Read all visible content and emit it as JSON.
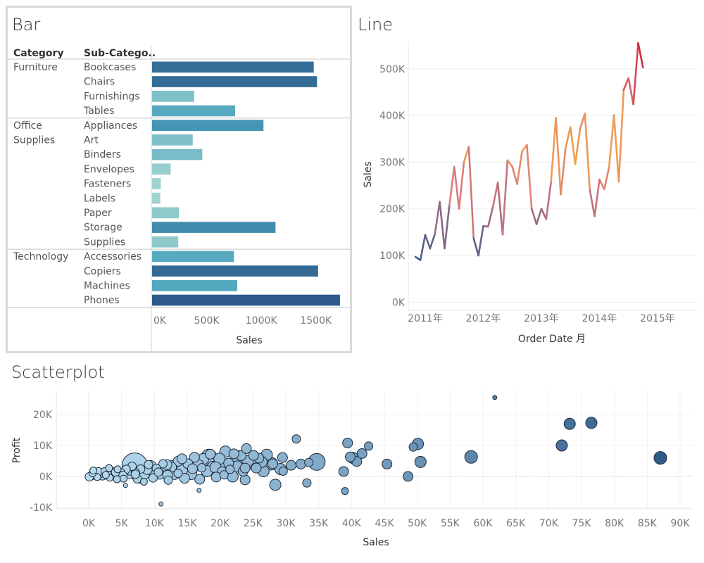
{
  "chart_data": [
    {
      "type": "bar",
      "title": "Bar",
      "orientation": "horizontal",
      "col_headers": [
        "Category",
        "Sub-Catego.."
      ],
      "groups": [
        {
          "label": [
            "Furniture"
          ],
          "items": [
            {
              "name": "Bookcases",
              "value": 1480000
            },
            {
              "name": "Chairs",
              "value": 1510000
            },
            {
              "name": "Furnishings",
              "value": 385000
            },
            {
              "name": "Tables",
              "value": 760000
            }
          ]
        },
        {
          "label": [
            "Office",
            "Supplies"
          ],
          "items": [
            {
              "name": "Appliances",
              "value": 1020000
            },
            {
              "name": "Art",
              "value": 372000
            },
            {
              "name": "Binders",
              "value": 460000
            },
            {
              "name": "Envelopes",
              "value": 170000
            },
            {
              "name": "Fasteners",
              "value": 80000
            },
            {
              "name": "Labels",
              "value": 75000
            },
            {
              "name": "Paper",
              "value": 245000
            },
            {
              "name": "Storage",
              "value": 1130000
            },
            {
              "name": "Supplies",
              "value": 240000
            }
          ]
        },
        {
          "label": [
            "Technology"
          ],
          "items": [
            {
              "name": "Accessories",
              "value": 750000
            },
            {
              "name": "Copiers",
              "value": 1520000
            },
            {
              "name": "Machines",
              "value": 780000
            },
            {
              "name": "Phones",
              "value": 1720000
            }
          ]
        }
      ],
      "xlabel": "Sales",
      "xticks": [
        "0K",
        "500K",
        "1000K",
        "1500K"
      ],
      "xtick_values": [
        0,
        500000,
        1000000,
        1500000
      ],
      "xlim": [
        0,
        1740000
      ],
      "color_low": "#a9d8d2",
      "color_high": "#2d5a8a"
    },
    {
      "type": "line",
      "title": "Line",
      "xlabel": "Order Date 月",
      "ylabel": "Sales",
      "xticks": [
        "2011年",
        "2012年",
        "2013年",
        "2014年",
        "2015年"
      ],
      "xtick_dates": [
        "2011-01",
        "2012-01",
        "2013-01",
        "2014-01",
        "2015-01"
      ],
      "yticks": [
        "0K",
        "100K",
        "200K",
        "300K",
        "400K",
        "500K"
      ],
      "ytick_values": [
        0,
        100000,
        200000,
        300000,
        400000,
        500000
      ],
      "ylim": [
        -10000,
        560000
      ],
      "x_start": "2010-11",
      "values": [
        97000,
        90000,
        144000,
        115000,
        146000,
        215000,
        115000,
        208000,
        290000,
        200000,
        300000,
        333000,
        137000,
        100000,
        163000,
        162000,
        205000,
        256000,
        145000,
        304000,
        290000,
        253000,
        323000,
        337000,
        200000,
        167000,
        200000,
        178000,
        258000,
        395000,
        231000,
        330000,
        375000,
        296000,
        372000,
        404000,
        241000,
        184000,
        263000,
        242000,
        290000,
        401000,
        258000,
        455000,
        480000,
        424000,
        555000,
        503000
      ],
      "color_low": "#3a5a8c",
      "color_mid": "#e07a7a",
      "color_orange": "#f0a050",
      "color_high": "#c41e3a"
    },
    {
      "type": "scatter",
      "title": "Scatterplot",
      "xlabel": "Sales",
      "ylabel": "Profit",
      "xticks": [
        "0K",
        "5K",
        "10K",
        "15K",
        "20K",
        "25K",
        "30K",
        "35K",
        "40K",
        "45K",
        "50K",
        "55K",
        "60K",
        "65K",
        "70K",
        "75K",
        "80K",
        "85K",
        "90K"
      ],
      "xtick_values": [
        0,
        5000,
        10000,
        15000,
        20000,
        25000,
        30000,
        35000,
        40000,
        45000,
        50000,
        55000,
        60000,
        65000,
        70000,
        75000,
        80000,
        85000,
        90000
      ],
      "yticks": [
        "-10K",
        "0K",
        "10K",
        "20K"
      ],
      "ytick_values": [
        -10000,
        0,
        10000,
        20000
      ],
      "xlim": [
        -3000,
        92000
      ],
      "ylim": [
        -12000,
        28000
      ],
      "points": [
        [
          61800,
          25500,
          3
        ],
        [
          73200,
          17000,
          8
        ],
        [
          76500,
          17300,
          8
        ],
        [
          72000,
          10000,
          8
        ],
        [
          87000,
          6000,
          9
        ],
        [
          58200,
          6300,
          9
        ],
        [
          50100,
          10500,
          8
        ],
        [
          50500,
          4700,
          8
        ],
        [
          48600,
          0,
          7
        ],
        [
          49400,
          9500,
          6
        ],
        [
          45400,
          4000,
          7
        ],
        [
          42600,
          9800,
          6
        ],
        [
          41600,
          7400,
          7
        ],
        [
          40800,
          4800,
          7
        ],
        [
          40200,
          6000,
          8
        ],
        [
          39400,
          10800,
          7
        ],
        [
          39000,
          -4700,
          5
        ],
        [
          38800,
          1600,
          7
        ],
        [
          34700,
          4700,
          12
        ],
        [
          33200,
          -2100,
          6
        ],
        [
          32300,
          4000,
          7
        ],
        [
          31600,
          12100,
          6
        ],
        [
          29500,
          6100,
          7
        ],
        [
          29200,
          2400,
          8
        ],
        [
          28400,
          -2700,
          8
        ],
        [
          28000,
          4100,
          7
        ],
        [
          27100,
          7000,
          8
        ],
        [
          26600,
          1700,
          8
        ],
        [
          25900,
          5900,
          7
        ],
        [
          25400,
          3800,
          9
        ],
        [
          25100,
          6800,
          7
        ],
        [
          24200,
          4900,
          8
        ],
        [
          23800,
          -1100,
          7
        ],
        [
          23500,
          1700,
          7
        ],
        [
          23200,
          6700,
          7
        ],
        [
          22600,
          3200,
          8
        ],
        [
          22100,
          7300,
          7
        ],
        [
          21900,
          0,
          8
        ],
        [
          21300,
          4300,
          7
        ],
        [
          20800,
          8000,
          8
        ],
        [
          20300,
          1500,
          7
        ],
        [
          19900,
          5700,
          8
        ],
        [
          19400,
          -200,
          7
        ],
        [
          18900,
          3100,
          8
        ],
        [
          18500,
          7200,
          7
        ],
        [
          18000,
          1700,
          8
        ],
        [
          17400,
          5600,
          8
        ],
        [
          16900,
          -900,
          7
        ],
        [
          16700,
          3600,
          8
        ],
        [
          16100,
          6200,
          7
        ],
        [
          15600,
          800,
          8
        ],
        [
          15100,
          4100,
          7
        ],
        [
          14600,
          -600,
          7
        ],
        [
          14200,
          2100,
          8
        ],
        [
          13600,
          4900,
          7
        ],
        [
          13100,
          600,
          7
        ],
        [
          12600,
          3000,
          7
        ],
        [
          12100,
          -1200,
          6
        ],
        [
          11700,
          1900,
          7
        ],
        [
          11300,
          4100,
          6
        ],
        [
          10800,
          700,
          7
        ],
        [
          10300,
          2600,
          6
        ],
        [
          9800,
          -500,
          6
        ],
        [
          9400,
          1800,
          7
        ],
        [
          9100,
          3800,
          6
        ],
        [
          8500,
          700,
          7
        ],
        [
          7900,
          2400,
          6
        ],
        [
          7400,
          -800,
          6
        ],
        [
          7100,
          1300,
          6
        ],
        [
          6600,
          3300,
          6
        ],
        [
          7000,
          3500,
          18
        ],
        [
          6100,
          800,
          7
        ],
        [
          5700,
          2300,
          6
        ],
        [
          5300,
          -700,
          5
        ],
        [
          4900,
          1200,
          6
        ],
        [
          4400,
          2300,
          5
        ],
        [
          4000,
          400,
          6
        ],
        [
          3600,
          1500,
          6
        ],
        [
          3200,
          -400,
          5
        ],
        [
          2800,
          900,
          6
        ],
        [
          2400,
          1700,
          5
        ],
        [
          2100,
          200,
          6
        ],
        [
          1700,
          900,
          6
        ],
        [
          1300,
          -200,
          5
        ],
        [
          900,
          500,
          6
        ],
        [
          600,
          1000,
          5
        ],
        [
          300,
          100,
          6
        ],
        [
          100,
          -100,
          6
        ],
        [
          11000,
          -8900,
          3
        ],
        [
          16800,
          -4500,
          3
        ],
        [
          5600,
          -2900,
          3
        ],
        [
          7700,
          100,
          10
        ],
        [
          12800,
          2900,
          10
        ],
        [
          20400,
          3500,
          10
        ],
        [
          18300,
          6300,
          11
        ],
        [
          22700,
          6300,
          9
        ],
        [
          15400,
          1400,
          9
        ],
        [
          9400,
          3100,
          9
        ],
        [
          24000,
          9000,
          7
        ],
        [
          26300,
          4700,
          8
        ],
        [
          30800,
          3600,
          7
        ],
        [
          14200,
          5700,
          7
        ],
        [
          20600,
          500,
          6
        ],
        [
          8400,
          -1700,
          5
        ],
        [
          12000,
          400,
          7
        ],
        [
          3100,
          2700,
          5
        ],
        [
          1500,
          1500,
          6
        ],
        [
          5200,
          300,
          6
        ],
        [
          4300,
          -900,
          5
        ],
        [
          7100,
          700,
          6
        ],
        [
          2600,
          500,
          5
        ],
        [
          10600,
          1400,
          6
        ],
        [
          21500,
          2300,
          6
        ],
        [
          17200,
          2800,
          6
        ],
        [
          13600,
          1000,
          6
        ],
        [
          19300,
          2900,
          8
        ],
        [
          25500,
          2700,
          7
        ],
        [
          27800,
          4100,
          9
        ],
        [
          33500,
          4500,
          6
        ],
        [
          39800,
          6300,
          7
        ],
        [
          11900,
          3800,
          7
        ],
        [
          6300,
          2000,
          7
        ],
        [
          15800,
          2500,
          7
        ],
        [
          23800,
          2700,
          7
        ],
        [
          29600,
          1700,
          6
        ],
        [
          700,
          1900,
          5
        ],
        [
          4100,
          1400,
          6
        ],
        [
          8900,
          2200,
          7
        ]
      ],
      "color_low": "#b8dcf0",
      "color_high": "#2d5a8a"
    }
  ]
}
